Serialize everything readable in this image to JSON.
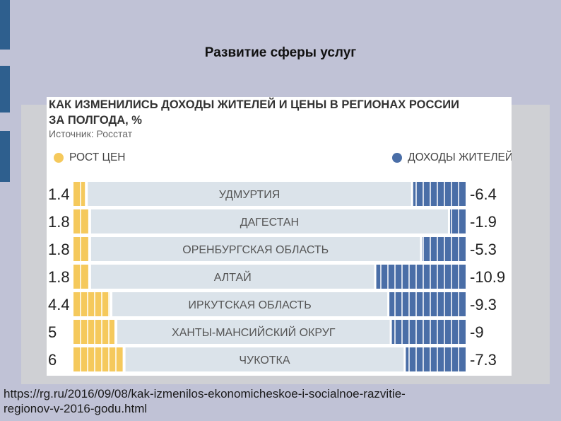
{
  "slide": {
    "title": "Развитие сферы услуг",
    "url_line1": "https://rg.ru/2016/09/08/kak-izmenilos-ekonomicheskoe-i-socialnoe-razvitie-",
    "url_line2": "regionov-v-2016-godu.html"
  },
  "colors": {
    "background": "#c0c2d6",
    "left_bar": "#2e5f8e",
    "price_bar": "#f5c95c",
    "income_bar": "#4a6ea7",
    "label_band": "#dbe3ea"
  },
  "chart_data": {
    "type": "bar",
    "title": "КАК ИЗМЕНИЛИСЬ ДОХОДЫ ЖИТЕЛЕЙ И ЦЕНЫ В РЕГИОНАХ РОССИИ",
    "title_line2": "ЗА ПОЛГОДА, %",
    "source": "Источник: Росстат",
    "legend": [
      "РОСТ ЦЕН",
      "ДОХОДЫ ЖИТЕЛЕЙ"
    ],
    "categories": [
      "УДМУРТИЯ",
      "ДАГЕСТАН",
      "ОРЕНБУРГСКАЯ ОБЛАСТЬ",
      "АЛТАЙ",
      "ИРКУТСКАЯ ОБЛАСТЬ",
      "ХАНТЫ-МАНСИЙСКИЙ ОКРУГ",
      "ЧУКОТКА"
    ],
    "series": [
      {
        "name": "РОСТ ЦЕН",
        "values": [
          1.4,
          1.8,
          1.8,
          1.8,
          4.4,
          5,
          6
        ],
        "labels": [
          "1.4",
          "1.8",
          "1.8",
          "1.8",
          "4.4",
          "5",
          "6"
        ]
      },
      {
        "name": "ДОХОДЫ ЖИТЕЛЕЙ",
        "values": [
          -6.4,
          -1.9,
          -5.3,
          -10.9,
          -9.3,
          -9,
          -7.3
        ],
        "labels": [
          "-6.4",
          "-1.9",
          "-5.3",
          "-10.9",
          "-9.3",
          "-9",
          "-7.3"
        ]
      }
    ]
  }
}
